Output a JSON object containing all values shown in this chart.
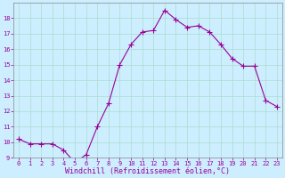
{
  "x": [
    0,
    1,
    2,
    3,
    4,
    5,
    6,
    7,
    8,
    9,
    10,
    11,
    12,
    13,
    14,
    15,
    16,
    17,
    18,
    19,
    20,
    21,
    22,
    23
  ],
  "y": [
    10.2,
    9.9,
    9.9,
    9.9,
    9.5,
    8.7,
    9.2,
    11.0,
    12.5,
    15.0,
    16.3,
    17.1,
    17.2,
    18.5,
    17.9,
    17.4,
    17.5,
    17.1,
    16.3,
    15.4,
    14.9,
    14.9,
    12.7,
    12.3
  ],
  "line_color": "#990099",
  "marker": "+",
  "marker_size": 4,
  "bg_color": "#cceeff",
  "grid_color": "#aaddcc",
  "xlabel": "Windchill (Refroidissement éolien,°C)",
  "xlabel_color": "#990099",
  "tick_color": "#990099",
  "ylim": [
    9,
    19
  ],
  "xlim": [
    -0.5,
    23.5
  ],
  "yticks": [
    9,
    10,
    11,
    12,
    13,
    14,
    15,
    16,
    17,
    18
  ],
  "xticks": [
    0,
    1,
    2,
    3,
    4,
    5,
    6,
    7,
    8,
    9,
    10,
    11,
    12,
    13,
    14,
    15,
    16,
    17,
    18,
    19,
    20,
    21,
    22,
    23
  ],
  "spine_color": "#888888",
  "tick_fontsize": 5.0,
  "xlabel_fontsize": 6.0,
  "linewidth": 0.8,
  "marker_linewidth": 0.8
}
